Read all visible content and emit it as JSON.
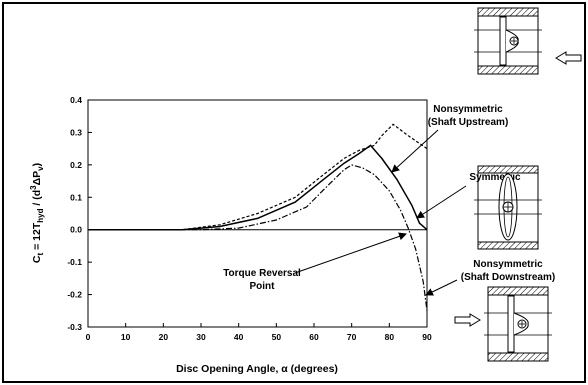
{
  "chart_data": {
    "type": "line",
    "xlabel": "Disc Opening Angle, α (degrees)",
    "ylabel": "Ct = 12Thyd / (d³ΔPv)",
    "ylabel_parts": {
      "c": "C",
      "c_sub": "t",
      "eq": " = 12T",
      "t_sub": "hyd",
      "mid": " / (d",
      "d_sup": "3",
      "dp": "ΔP",
      "p_sub": "v",
      "close": ")"
    },
    "xlim": [
      0,
      90
    ],
    "ylim": [
      -0.3,
      0.4
    ],
    "x_ticks": [
      "0",
      "10",
      "20",
      "30",
      "40",
      "50",
      "60",
      "70",
      "80",
      "90"
    ],
    "y_ticks": [
      "0.4",
      "0.3",
      "0.2",
      "0.1",
      "0.0",
      "-0.1",
      "-0.2",
      "-0.3"
    ],
    "grid": false,
    "series": [
      {
        "name": "Nonsymmetric (Shaft Upstream)",
        "style": "dashed",
        "x": [
          0,
          25,
          35,
          45,
          55,
          62,
          68,
          72,
          76,
          78,
          81,
          85,
          90
        ],
        "y": [
          0,
          0,
          0.015,
          0.05,
          0.1,
          0.165,
          0.22,
          0.245,
          0.26,
          0.29,
          0.325,
          0.29,
          0.25
        ]
      },
      {
        "name": "Symmetric",
        "style": "solid",
        "x": [
          0,
          25,
          35,
          45,
          55,
          62,
          68,
          72,
          75,
          78,
          82,
          86,
          88,
          90
        ],
        "y": [
          0,
          0,
          0.01,
          0.035,
          0.085,
          0.15,
          0.205,
          0.235,
          0.26,
          0.22,
          0.155,
          0.075,
          0.02,
          0
        ]
      },
      {
        "name": "Nonsymmetric (Shaft Downstream)",
        "style": "dash-dot",
        "x": [
          0,
          30,
          40,
          50,
          58,
          64,
          68,
          70,
          73,
          76,
          80,
          83,
          85,
          87,
          89,
          90
        ],
        "y": [
          0,
          0,
          0.005,
          0.03,
          0.07,
          0.14,
          0.185,
          0.2,
          0.19,
          0.17,
          0.12,
          0.06,
          0.005,
          -0.06,
          -0.16,
          -0.25
        ]
      }
    ],
    "annotations": [
      {
        "lines": [
          "Nonsymmetric",
          "(Shaft Upstream)"
        ]
      },
      {
        "lines": [
          "Symmetric"
        ]
      },
      {
        "lines": [
          "Nonsymmetric",
          "(Shaft Downstream)"
        ]
      },
      {
        "lines": [
          "Torque Reversal",
          "Point"
        ]
      }
    ]
  }
}
